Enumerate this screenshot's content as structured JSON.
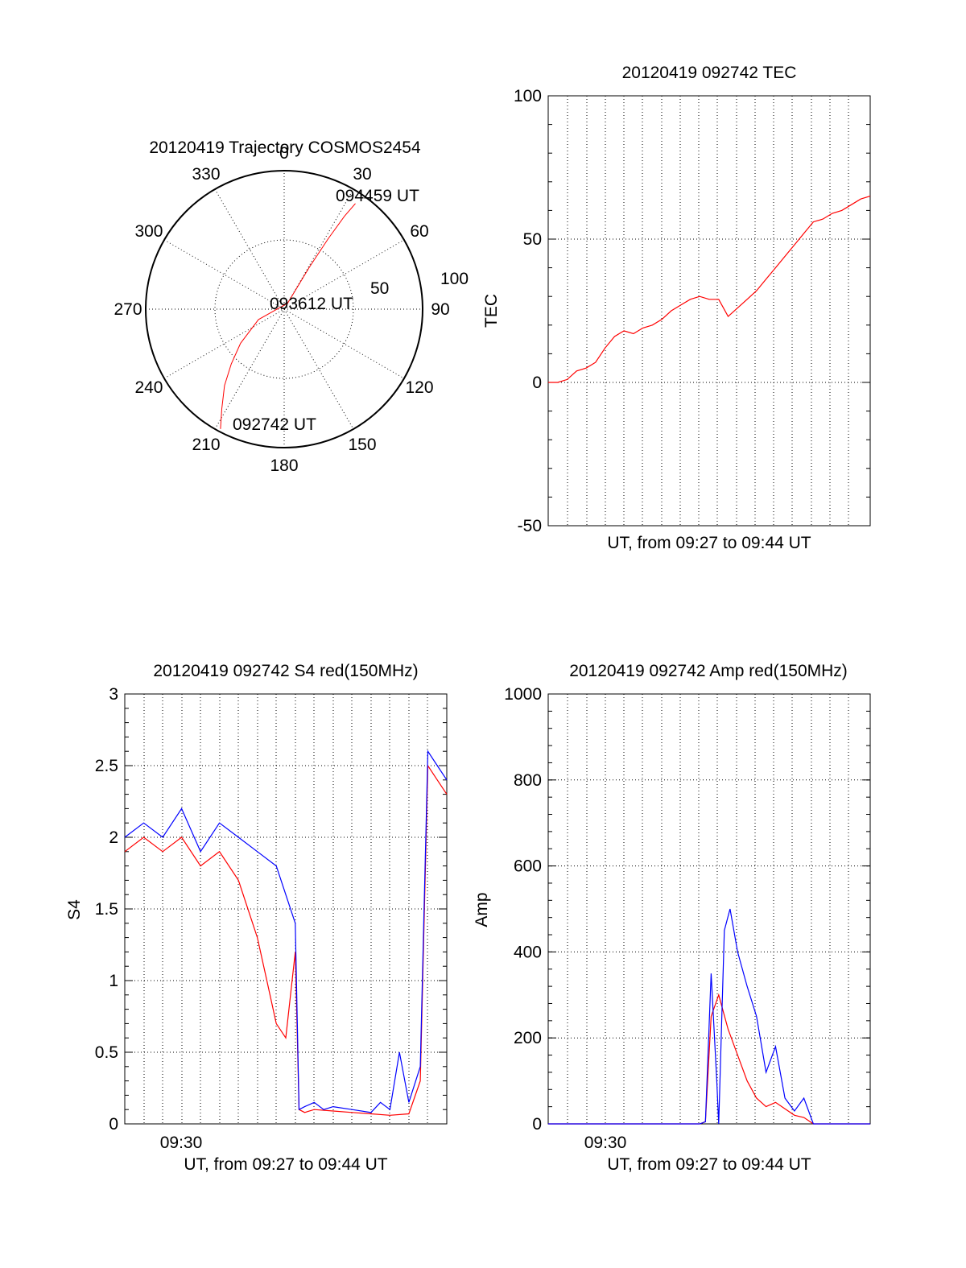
{
  "chart_data": [
    {
      "type": "polar",
      "title": "20120419 Trajectory COSMOS2454",
      "azimuth_labels": [
        "0",
        "30",
        "60",
        "90",
        "120",
        "150",
        "180",
        "210",
        "240",
        "270",
        "300",
        "330"
      ],
      "ring_labels": [
        "50",
        "100"
      ],
      "elevation_max": 100,
      "line_color": "#ff0000",
      "trajectory": {
        "azimuth_deg": [
          208,
          212,
          218,
          224,
          232,
          248,
          30,
          31,
          32,
          33,
          34
        ],
        "radius": [
          98,
          85,
          70,
          55,
          40,
          20,
          5,
          35,
          60,
          80,
          92
        ]
      },
      "annotations": [
        "094459 UT",
        "093612 UT",
        "092742 UT"
      ]
    },
    {
      "type": "line",
      "title": "20120419 092742 TEC",
      "xlabel": "UT, from 09:27 to 09:44 UT",
      "ylabel": "TEC",
      "ylim": [
        -50,
        100
      ],
      "yticks": [
        "100",
        "50",
        "0",
        "-50"
      ],
      "grid": true,
      "series": [
        {
          "color": "#ff0000",
          "x": [
            0,
            0.5,
            1,
            1.5,
            2,
            2.5,
            3,
            3.5,
            4,
            4.5,
            5,
            5.5,
            6,
            6.5,
            7,
            7.5,
            8,
            8.5,
            9,
            9.5,
            10,
            10.5,
            11,
            11.5,
            12,
            12.5,
            13,
            13.5,
            14,
            14.5,
            15,
            15.5,
            16,
            16.5,
            17
          ],
          "values": [
            0,
            0,
            1,
            4,
            5,
            7,
            12,
            16,
            18,
            17,
            19,
            20,
            22,
            25,
            27,
            29,
            30,
            29,
            29,
            23,
            26,
            29,
            32,
            36,
            40,
            44,
            48,
            52,
            56,
            57,
            59,
            60,
            62,
            64,
            65
          ]
        }
      ]
    },
    {
      "type": "line",
      "title": "20120419 092742 S4 red(150MHz)",
      "xlabel": "UT, from 09:27 to 09:44 UT",
      "ylabel": "S4",
      "ylim": [
        0,
        3
      ],
      "yticks": [
        "3",
        "2.5",
        "2",
        "1.5",
        "1",
        "0.5",
        "0"
      ],
      "xtick_label": "09:30",
      "grid": true,
      "series": [
        {
          "color": "#ff0000",
          "x": [
            0,
            1,
            2,
            3,
            4,
            5,
            6,
            7,
            7.5,
            8,
            8.5,
            9,
            9.2,
            9.5,
            10,
            11,
            12,
            13,
            14,
            15,
            15.6,
            16,
            16.5,
            17
          ],
          "values": [
            1.9,
            2.0,
            1.9,
            2.0,
            1.8,
            1.9,
            1.7,
            1.3,
            1.0,
            0.7,
            0.6,
            1.2,
            0.1,
            0.08,
            0.1,
            0.09,
            0.08,
            0.07,
            0.06,
            0.07,
            0.3,
            2.5,
            2.4,
            2.3
          ]
        },
        {
          "color": "#0000ff",
          "x": [
            0,
            1,
            2,
            3,
            4,
            5,
            6,
            7,
            8,
            8.5,
            9,
            9.2,
            9.5,
            10,
            10.5,
            11,
            12,
            13,
            13.5,
            14,
            14.5,
            15,
            15.6,
            16,
            16.5,
            17
          ],
          "values": [
            2.0,
            2.1,
            2.0,
            2.2,
            1.9,
            2.1,
            2.0,
            1.9,
            1.8,
            1.6,
            1.4,
            0.1,
            0.12,
            0.15,
            0.1,
            0.12,
            0.1,
            0.08,
            0.15,
            0.1,
            0.5,
            0.15,
            0.4,
            2.6,
            2.5,
            2.4
          ]
        }
      ]
    },
    {
      "type": "line",
      "title": "20120419 092742 Amp red(150MHz)",
      "xlabel": "UT, from 09:27 to 09:44 UT",
      "ylabel": "Amp",
      "ylim": [
        0,
        1000
      ],
      "yticks": [
        "1000",
        "800",
        "600",
        "400",
        "200",
        "0"
      ],
      "xtick_label": "09:30",
      "grid": true,
      "series": [
        {
          "color": "#ff0000",
          "x": [
            0,
            2,
            4,
            6,
            8,
            8.3,
            8.6,
            9,
            9.5,
            10,
            10.5,
            11,
            11.5,
            12,
            12.5,
            13,
            13.5,
            14,
            15,
            17
          ],
          "values": [
            0,
            0,
            0,
            0,
            0,
            5,
            250,
            300,
            220,
            160,
            100,
            60,
            40,
            50,
            35,
            20,
            15,
            0,
            0,
            0
          ]
        },
        {
          "color": "#0000ff",
          "x": [
            0,
            2,
            4,
            6,
            8,
            8.3,
            8.6,
            8.9,
            9,
            9.3,
            9.6,
            10,
            10.5,
            11,
            11.5,
            12,
            12.5,
            13,
            13.5,
            14,
            15,
            17
          ],
          "values": [
            0,
            0,
            0,
            0,
            0,
            5,
            350,
            100,
            0,
            450,
            500,
            400,
            320,
            250,
            120,
            180,
            60,
            30,
            60,
            0,
            0,
            0
          ]
        }
      ]
    }
  ]
}
